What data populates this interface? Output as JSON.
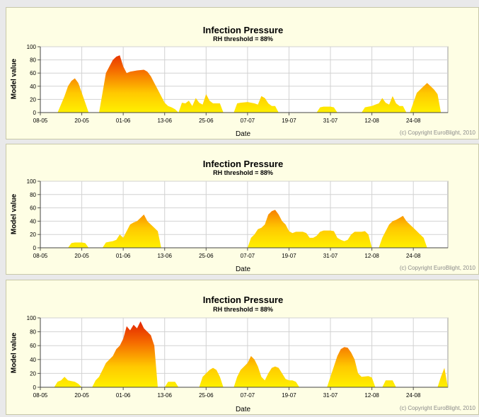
{
  "chart_data": [
    {
      "type": "area",
      "title": "Infection Pressure",
      "subtitle": "RH threshold = 88%",
      "xlabel": "Date",
      "ylabel": "Model value",
      "copyright": "(c) Copyright EuroBlight, 2010",
      "ylim": [
        0,
        100
      ],
      "yticks": [
        0,
        20,
        40,
        60,
        80,
        100
      ],
      "xticks": [
        "08-05",
        "20-05",
        "01-06",
        "13-06",
        "25-06",
        "07-07",
        "19-07",
        "31-07",
        "12-08",
        "24-08"
      ],
      "xrange_days": [
        0,
        118
      ],
      "grid": true,
      "points": [
        [
          0,
          0
        ],
        [
          5,
          0
        ],
        [
          7,
          25
        ],
        [
          8,
          40
        ],
        [
          9,
          48
        ],
        [
          10,
          52
        ],
        [
          11,
          45
        ],
        [
          12,
          30
        ],
        [
          13,
          15
        ],
        [
          14,
          0
        ],
        [
          17,
          0
        ],
        [
          18,
          30
        ],
        [
          19,
          60
        ],
        [
          20,
          70
        ],
        [
          21,
          80
        ],
        [
          22,
          85
        ],
        [
          23,
          87
        ],
        [
          24,
          70
        ],
        [
          25,
          60
        ],
        [
          26,
          62
        ],
        [
          28,
          64
        ],
        [
          30,
          65
        ],
        [
          31,
          62
        ],
        [
          32,
          55
        ],
        [
          33,
          45
        ],
        [
          34,
          35
        ],
        [
          35,
          25
        ],
        [
          36,
          15
        ],
        [
          37,
          10
        ],
        [
          38,
          8
        ],
        [
          39,
          5
        ],
        [
          40,
          0
        ],
        [
          41,
          15
        ],
        [
          42,
          14
        ],
        [
          43,
          18
        ],
        [
          44,
          10
        ],
        [
          45,
          22
        ],
        [
          46,
          15
        ],
        [
          47,
          12
        ],
        [
          48,
          28
        ],
        [
          49,
          18
        ],
        [
          50,
          14
        ],
        [
          52,
          14
        ],
        [
          53,
          0
        ],
        [
          56,
          0
        ],
        [
          57,
          14
        ],
        [
          58,
          15
        ],
        [
          60,
          16
        ],
        [
          62,
          14
        ],
        [
          63,
          12
        ],
        [
          64,
          25
        ],
        [
          65,
          22
        ],
        [
          66,
          14
        ],
        [
          67,
          10
        ],
        [
          68,
          10
        ],
        [
          69,
          0
        ],
        [
          80,
          0
        ],
        [
          81,
          8
        ],
        [
          82,
          9
        ],
        [
          84,
          9
        ],
        [
          85,
          8
        ],
        [
          86,
          0
        ],
        [
          93,
          0
        ],
        [
          94,
          8
        ],
        [
          95,
          9
        ],
        [
          96,
          10
        ],
        [
          97,
          12
        ],
        [
          98,
          14
        ],
        [
          99,
          22
        ],
        [
          100,
          15
        ],
        [
          101,
          12
        ],
        [
          102,
          25
        ],
        [
          103,
          14
        ],
        [
          104,
          10
        ],
        [
          105,
          10
        ],
        [
          106,
          0
        ],
        [
          107,
          0
        ],
        [
          108,
          15
        ],
        [
          109,
          30
        ],
        [
          110,
          35
        ],
        [
          111,
          40
        ],
        [
          112,
          45
        ],
        [
          113,
          40
        ],
        [
          114,
          35
        ],
        [
          115,
          28
        ],
        [
          116,
          0
        ],
        [
          117,
          0
        ],
        [
          118,
          0
        ]
      ]
    },
    {
      "type": "area",
      "title": "Infection Pressure",
      "subtitle": "RH threshold = 88%",
      "xlabel": "Date",
      "ylabel": "Model value",
      "copyright": "(c) Copyright EuroBlight, 2010",
      "ylim": [
        0,
        100
      ],
      "yticks": [
        0,
        20,
        40,
        60,
        80,
        100
      ],
      "xticks": [
        "08-05",
        "20-05",
        "01-06",
        "13-06",
        "25-06",
        "07-07",
        "19-07",
        "31-07",
        "12-08",
        "24-08"
      ],
      "xrange_days": [
        0,
        118
      ],
      "grid": true,
      "points": [
        [
          0,
          0
        ],
        [
          8,
          0
        ],
        [
          9,
          7
        ],
        [
          10,
          8
        ],
        [
          12,
          8
        ],
        [
          13,
          7
        ],
        [
          14,
          0
        ],
        [
          18,
          0
        ],
        [
          19,
          8
        ],
        [
          20,
          9
        ],
        [
          21,
          10
        ],
        [
          22,
          12
        ],
        [
          23,
          20
        ],
        [
          24,
          15
        ],
        [
          25,
          25
        ],
        [
          26,
          35
        ],
        [
          27,
          38
        ],
        [
          28,
          40
        ],
        [
          29,
          45
        ],
        [
          30,
          50
        ],
        [
          31,
          40
        ],
        [
          32,
          35
        ],
        [
          33,
          30
        ],
        [
          34,
          25
        ],
        [
          35,
          0
        ],
        [
          60,
          0
        ],
        [
          61,
          15
        ],
        [
          62,
          20
        ],
        [
          63,
          28
        ],
        [
          64,
          30
        ],
        [
          65,
          35
        ],
        [
          66,
          50
        ],
        [
          67,
          55
        ],
        [
          68,
          57
        ],
        [
          69,
          50
        ],
        [
          70,
          40
        ],
        [
          71,
          35
        ],
        [
          72,
          25
        ],
        [
          73,
          22
        ],
        [
          74,
          24
        ],
        [
          75,
          24
        ],
        [
          76,
          24
        ],
        [
          77,
          22
        ],
        [
          78,
          15
        ],
        [
          79,
          15
        ],
        [
          80,
          18
        ],
        [
          81,
          24
        ],
        [
          82,
          26
        ],
        [
          84,
          26
        ],
        [
          85,
          25
        ],
        [
          86,
          15
        ],
        [
          87,
          12
        ],
        [
          88,
          10
        ],
        [
          89,
          12
        ],
        [
          90,
          20
        ],
        [
          91,
          24
        ],
        [
          93,
          24
        ],
        [
          94,
          25
        ],
        [
          95,
          20
        ],
        [
          96,
          0
        ],
        [
          98,
          0
        ],
        [
          99,
          15
        ],
        [
          100,
          25
        ],
        [
          101,
          35
        ],
        [
          102,
          40
        ],
        [
          103,
          42
        ],
        [
          104,
          45
        ],
        [
          105,
          48
        ],
        [
          106,
          40
        ],
        [
          107,
          35
        ],
        [
          108,
          30
        ],
        [
          109,
          25
        ],
        [
          110,
          20
        ],
        [
          111,
          15
        ],
        [
          112,
          0
        ],
        [
          118,
          0
        ]
      ]
    },
    {
      "type": "area",
      "title": "Infection Pressure",
      "subtitle": "RH threshold = 88%",
      "xlabel": "Date",
      "ylabel": "Model value",
      "copyright": "(c) Copyright EuroBlight, 2010",
      "ylim": [
        0,
        100
      ],
      "yticks": [
        0,
        20,
        40,
        60,
        80,
        100
      ],
      "xticks": [
        "08-05",
        "20-05",
        "01-06",
        "13-06",
        "25-06",
        "07-07",
        "19-07",
        "31-07",
        "12-08",
        "24-08"
      ],
      "xrange_days": [
        0,
        118
      ],
      "grid": true,
      "points": [
        [
          0,
          0
        ],
        [
          4,
          0
        ],
        [
          5,
          8
        ],
        [
          6,
          10
        ],
        [
          7,
          15
        ],
        [
          8,
          10
        ],
        [
          9,
          9
        ],
        [
          10,
          8
        ],
        [
          11,
          5
        ],
        [
          12,
          0
        ],
        [
          15,
          0
        ],
        [
          16,
          10
        ],
        [
          17,
          15
        ],
        [
          18,
          25
        ],
        [
          19,
          35
        ],
        [
          20,
          40
        ],
        [
          21,
          45
        ],
        [
          22,
          55
        ],
        [
          23,
          60
        ],
        [
          24,
          70
        ],
        [
          25,
          88
        ],
        [
          26,
          82
        ],
        [
          27,
          90
        ],
        [
          28,
          85
        ],
        [
          29,
          95
        ],
        [
          30,
          85
        ],
        [
          31,
          80
        ],
        [
          32,
          75
        ],
        [
          33,
          60
        ],
        [
          34,
          0
        ],
        [
          36,
          0
        ],
        [
          37,
          8
        ],
        [
          39,
          8
        ],
        [
          40,
          0
        ],
        [
          46,
          0
        ],
        [
          47,
          15
        ],
        [
          48,
          20
        ],
        [
          49,
          25
        ],
        [
          50,
          28
        ],
        [
          51,
          25
        ],
        [
          52,
          15
        ],
        [
          53,
          0
        ],
        [
          56,
          0
        ],
        [
          57,
          15
        ],
        [
          58,
          25
        ],
        [
          59,
          30
        ],
        [
          60,
          35
        ],
        [
          61,
          45
        ],
        [
          62,
          40
        ],
        [
          63,
          30
        ],
        [
          64,
          15
        ],
        [
          65,
          10
        ],
        [
          66,
          20
        ],
        [
          67,
          28
        ],
        [
          68,
          30
        ],
        [
          69,
          28
        ],
        [
          70,
          20
        ],
        [
          71,
          12
        ],
        [
          72,
          10
        ],
        [
          73,
          10
        ],
        [
          74,
          8
        ],
        [
          75,
          0
        ],
        [
          83,
          0
        ],
        [
          84,
          15
        ],
        [
          85,
          30
        ],
        [
          86,
          45
        ],
        [
          87,
          55
        ],
        [
          88,
          58
        ],
        [
          89,
          57
        ],
        [
          90,
          50
        ],
        [
          91,
          40
        ],
        [
          92,
          20
        ],
        [
          93,
          15
        ],
        [
          95,
          16
        ],
        [
          96,
          14
        ],
        [
          97,
          0
        ],
        [
          99,
          0
        ],
        [
          100,
          10
        ],
        [
          102,
          10
        ],
        [
          103,
          0
        ],
        [
          115,
          0
        ],
        [
          116,
          15
        ],
        [
          117,
          28
        ],
        [
          118,
          0
        ]
      ]
    }
  ]
}
